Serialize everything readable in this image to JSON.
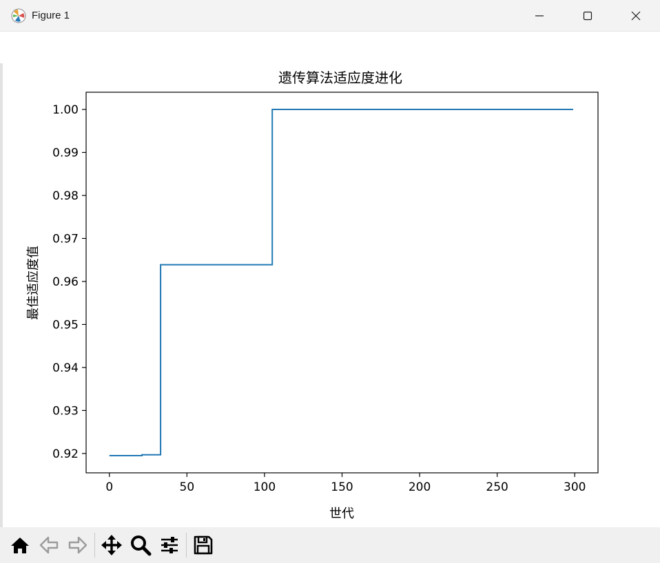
{
  "window": {
    "title": "Figure 1",
    "icons": [
      "matplotlib-logo-icon",
      "minimize-icon",
      "maximize-icon",
      "close-icon"
    ]
  },
  "toolbar": {
    "buttons": [
      "home-icon",
      "back-icon",
      "forward-icon",
      "pan-icon",
      "zoom-icon",
      "configure-subplots-icon",
      "save-icon"
    ]
  },
  "colors": {
    "line": "#1f77b4",
    "titlebar": "#f3f3f3",
    "toolbar": "#f0f0f0",
    "axes": "#000000"
  },
  "chart_data": {
    "type": "line",
    "title": "遗传算法适应度进化",
    "xlabel": "世代",
    "ylabel": "最佳适应度值",
    "xlim": [
      -15,
      315
    ],
    "ylim": [
      0.9155,
      1.004
    ],
    "xticks": [
      0,
      50,
      100,
      150,
      200,
      250,
      300
    ],
    "xtick_labels": [
      "0",
      "50",
      "100",
      "150",
      "200",
      "250",
      "300"
    ],
    "yticks": [
      0.92,
      0.93,
      0.94,
      0.95,
      0.96,
      0.97,
      0.98,
      0.99,
      1.0
    ],
    "ytick_labels": [
      "0.92",
      "0.93",
      "0.94",
      "0.95",
      "0.96",
      "0.97",
      "0.98",
      "0.99",
      "1.00"
    ],
    "grid": false,
    "series": [
      {
        "x": [
          0,
          21,
          21,
          33,
          33,
          105,
          105,
          299
        ],
        "y": [
          0.9195,
          0.9195,
          0.9197,
          0.9197,
          0.9639,
          0.9639,
          1.0,
          1.0
        ]
      }
    ]
  }
}
